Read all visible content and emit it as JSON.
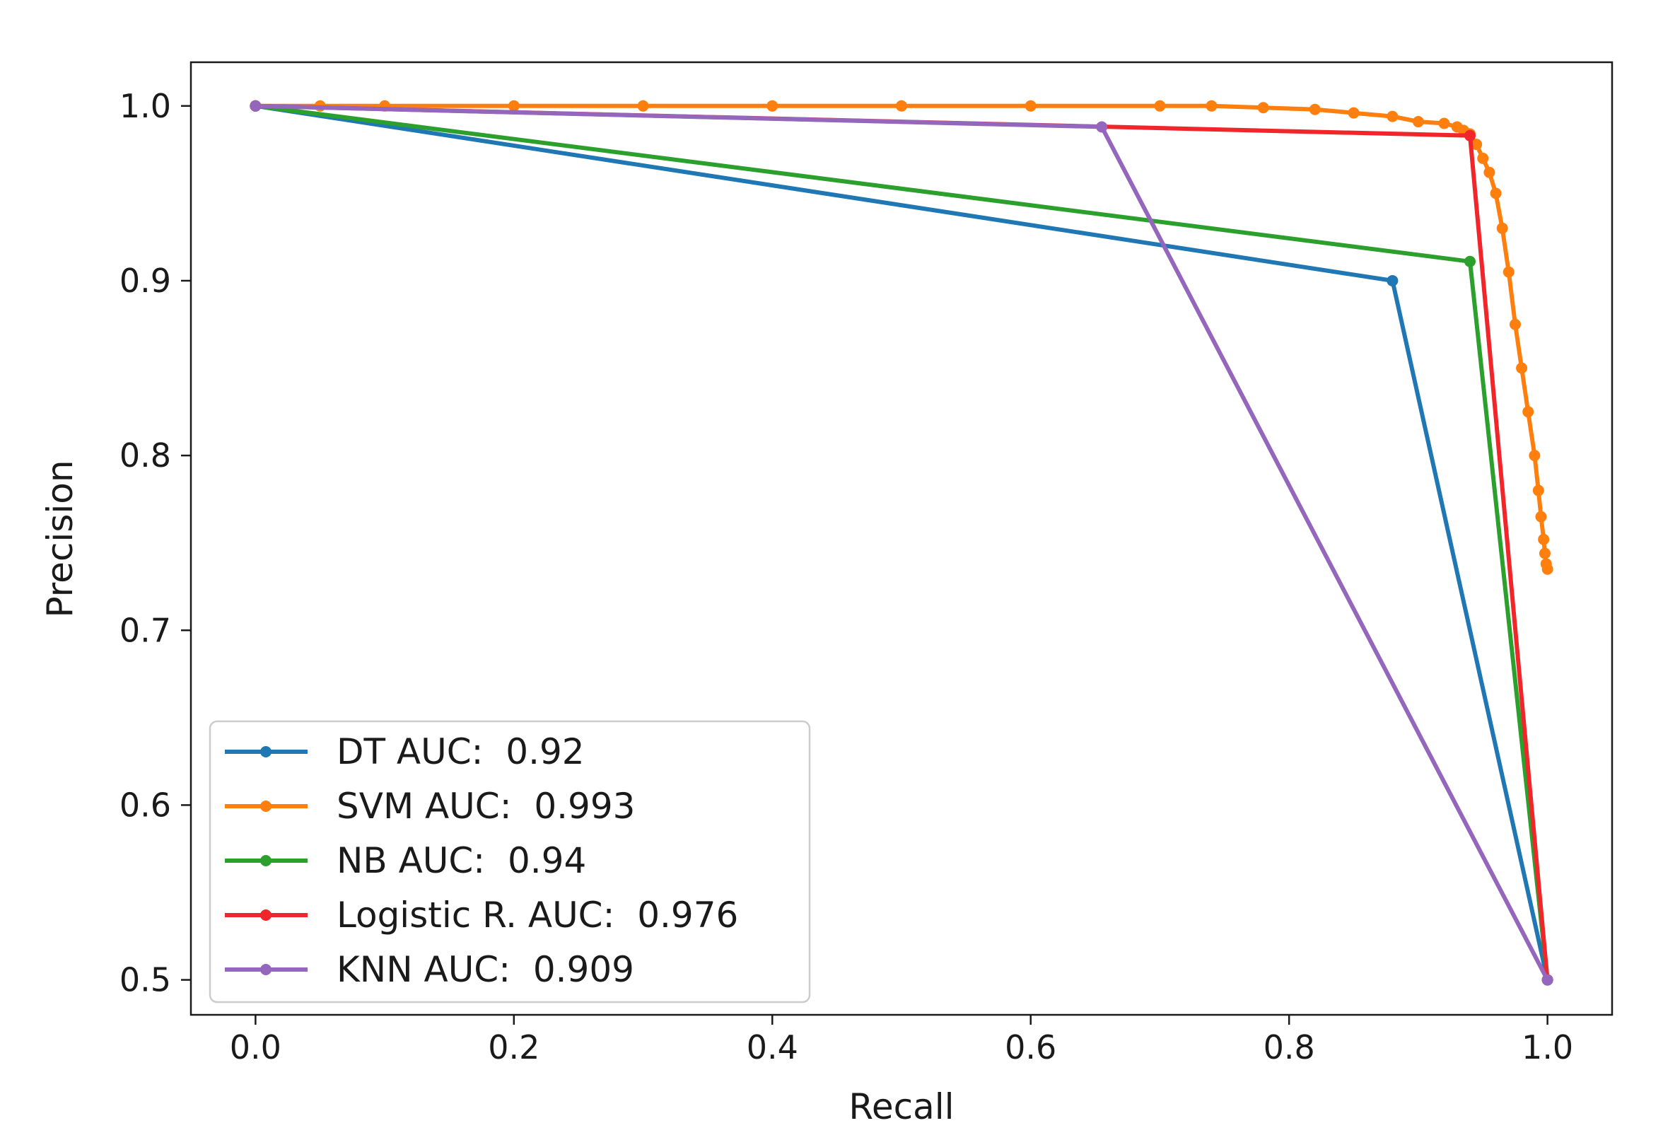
{
  "chart_data": {
    "type": "line",
    "title": "",
    "xlabel": "Recall",
    "ylabel": "Precision",
    "xlim": [
      -0.05,
      1.05
    ],
    "ylim": [
      0.48,
      1.025
    ],
    "xticks": [
      0.0,
      0.2,
      0.4,
      0.6,
      0.8,
      1.0
    ],
    "xtick_labels": [
      "0.0",
      "0.2",
      "0.4",
      "0.6",
      "0.8",
      "1.0"
    ],
    "yticks": [
      0.5,
      0.6,
      0.7,
      0.8,
      0.9,
      1.0
    ],
    "ytick_labels": [
      "0.5",
      "0.6",
      "0.7",
      "0.8",
      "0.9",
      "1.0"
    ],
    "grid": false,
    "legend_position": "lower-left",
    "series": [
      {
        "name": "DT AUC:  0.92",
        "color": "#1f77b4",
        "marker": "dot",
        "x": [
          0.0,
          0.88,
          1.0
        ],
        "y": [
          1.0,
          0.9,
          0.5
        ]
      },
      {
        "name": "SVM AUC:  0.993",
        "color": "#ff7f0e",
        "marker": "dot",
        "x": [
          0.0,
          0.05,
          0.1,
          0.2,
          0.3,
          0.4,
          0.5,
          0.6,
          0.7,
          0.74,
          0.78,
          0.82,
          0.85,
          0.88,
          0.9,
          0.92,
          0.93,
          0.935,
          0.94,
          0.945,
          0.95,
          0.955,
          0.96,
          0.965,
          0.97,
          0.975,
          0.98,
          0.985,
          0.99,
          0.993,
          0.995,
          0.997,
          0.998,
          0.999,
          1.0
        ],
        "y": [
          1.0,
          1.0,
          1.0,
          1.0,
          1.0,
          1.0,
          1.0,
          1.0,
          1.0,
          1.0,
          0.999,
          0.998,
          0.996,
          0.994,
          0.991,
          0.99,
          0.988,
          0.986,
          0.984,
          0.978,
          0.97,
          0.962,
          0.95,
          0.93,
          0.905,
          0.875,
          0.85,
          0.825,
          0.8,
          0.78,
          0.765,
          0.752,
          0.744,
          0.738,
          0.735
        ]
      },
      {
        "name": "NB AUC:  0.94",
        "color": "#2ca02c",
        "marker": "dot",
        "x": [
          0.0,
          0.94,
          1.0
        ],
        "y": [
          1.0,
          0.911,
          0.5
        ]
      },
      {
        "name": "Logistic R. AUC:  0.976",
        "color": "#f0262a",
        "marker": "dot",
        "x": [
          0.0,
          0.94,
          1.0
        ],
        "y": [
          1.0,
          0.983,
          0.5
        ]
      },
      {
        "name": "KNN AUC:  0.909",
        "color": "#9467bd",
        "marker": "dot",
        "x": [
          0.0,
          0.655,
          1.0
        ],
        "y": [
          1.0,
          0.988,
          0.5
        ]
      }
    ]
  }
}
